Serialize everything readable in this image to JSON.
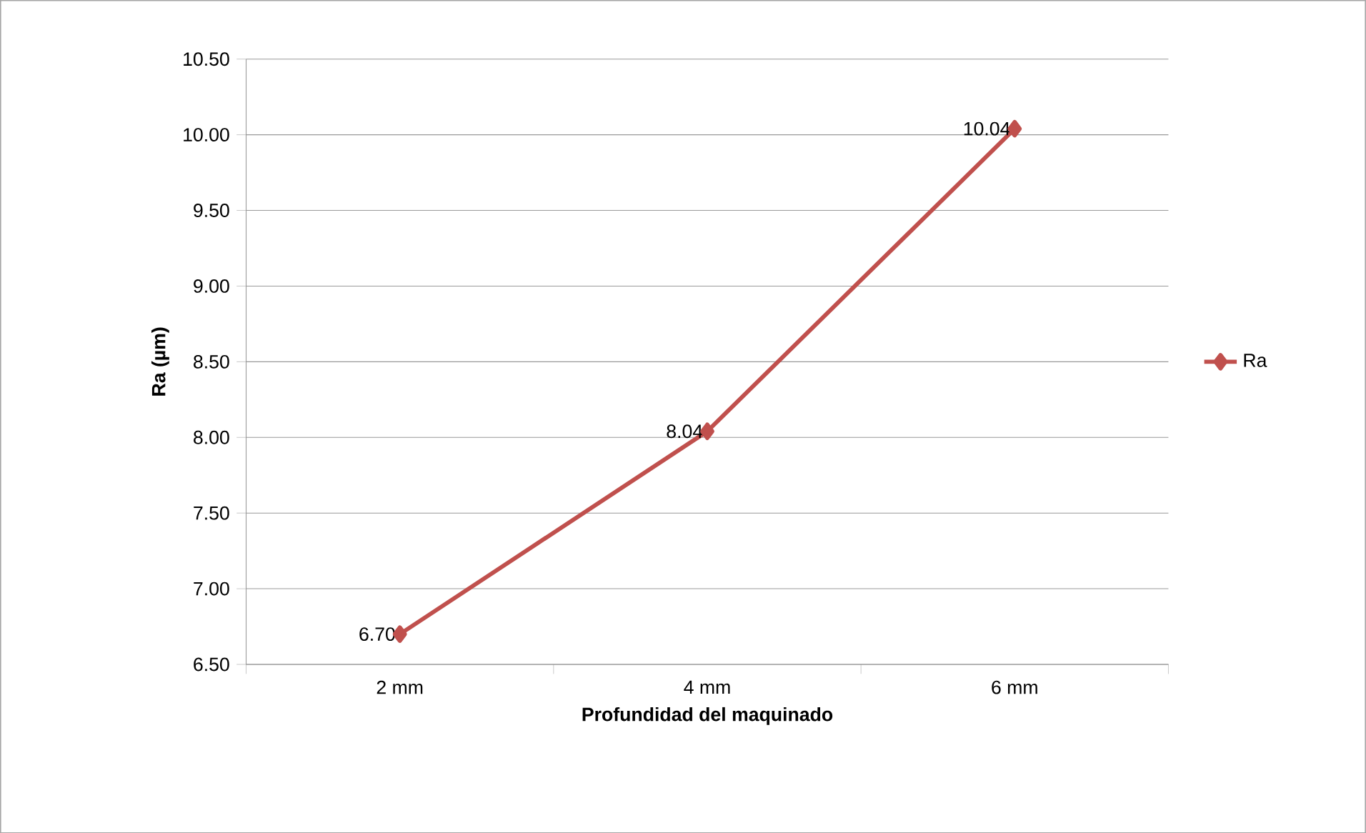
{
  "chart_data": {
    "type": "line",
    "xlabel": "Profundidad del maquinado",
    "ylabel": "Ra (µm)",
    "categories": [
      "2 mm",
      "4 mm",
      "6 mm"
    ],
    "series": [
      {
        "name": "Ra",
        "color": "#c0504d",
        "values": [
          6.7,
          8.04,
          10.04
        ],
        "value_labels": [
          "6.70",
          "8.04",
          "10.04"
        ]
      }
    ],
    "ylim": [
      6.5,
      10.5
    ],
    "yticks": [
      {
        "value": 6.5,
        "label": "6.50"
      },
      {
        "value": 7,
        "label": "7.00"
      },
      {
        "value": 7.5,
        "label": "7.50"
      },
      {
        "value": 8,
        "label": "8.00"
      },
      {
        "value": 8.5,
        "label": "8.50"
      },
      {
        "value": 9,
        "label": "9.00"
      },
      {
        "value": 9.5,
        "label": "9.50"
      },
      {
        "value": 10,
        "label": "10.00"
      },
      {
        "value": 10.5,
        "label": "10.50"
      }
    ],
    "grid": "y",
    "legend": "right",
    "marker": "diamond",
    "line_style": "solid"
  }
}
